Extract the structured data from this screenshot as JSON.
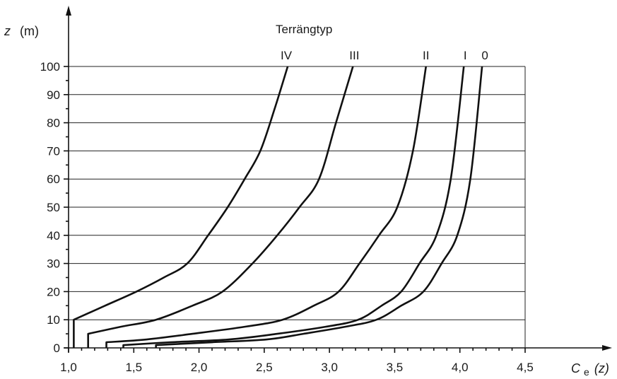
{
  "chart_data": {
    "type": "line",
    "legend_title": "Terrängtyp",
    "xlabel": {
      "symbol": "C",
      "subscript": "e",
      "arg": "(z)"
    },
    "ylabel": {
      "symbol": "z",
      "unit": "(m)"
    },
    "xlim": [
      1.0,
      4.5
    ],
    "ylim": [
      0,
      100
    ],
    "x_ticks": [
      "1,0",
      "1,5",
      "2,0",
      "2,5",
      "3,0",
      "3,5",
      "4,0",
      "4,5"
    ],
    "x_tick_values": [
      1.0,
      1.5,
      2.0,
      2.5,
      3.0,
      3.5,
      4.0,
      4.5
    ],
    "y_ticks": [
      "0",
      "10",
      "20",
      "30",
      "40",
      "50",
      "60",
      "70",
      "80",
      "90",
      "100"
    ],
    "y_tick_values": [
      0,
      10,
      20,
      30,
      40,
      50,
      60,
      70,
      80,
      90,
      100
    ],
    "grid": "horizontal",
    "series": [
      {
        "name": "IV",
        "z_min": 10,
        "x": [
          1.04,
          1.28,
          1.52,
          1.73,
          1.91,
          2.07,
          2.22,
          2.35,
          2.47,
          2.58,
          2.68
        ],
        "z": [
          10,
          15,
          20,
          25,
          30,
          40,
          50,
          60,
          70,
          85,
          100
        ]
      },
      {
        "name": "III",
        "z_min": 5,
        "x": [
          1.15,
          1.4,
          1.67,
          1.95,
          2.18,
          2.41,
          2.6,
          2.77,
          2.92,
          3.05,
          3.18
        ],
        "z": [
          5,
          7.5,
          10,
          15,
          20,
          30,
          40,
          50,
          60,
          80,
          100
        ]
      },
      {
        "name": "II",
        "z_min": 2,
        "x": [
          1.29,
          1.6,
          1.95,
          2.35,
          2.64,
          2.88,
          3.07,
          3.23,
          3.38,
          3.52,
          3.64,
          3.74
        ],
        "z": [
          2,
          3,
          5,
          7.5,
          10,
          15,
          20,
          30,
          40,
          50,
          70,
          100
        ]
      },
      {
        "name": "I",
        "z_min": 1,
        "x": [
          1.42,
          1.78,
          2.23,
          2.6,
          2.97,
          3.22,
          3.4,
          3.55,
          3.69,
          3.82,
          3.93,
          4.03
        ],
        "z": [
          1,
          2,
          3,
          5,
          7.5,
          10,
          15,
          20,
          30,
          40,
          60,
          100
        ]
      },
      {
        "name": "0",
        "z_min": 1,
        "x": [
          1.67,
          2.1,
          2.52,
          2.8,
          3.12,
          3.36,
          3.55,
          3.72,
          3.86,
          3.98,
          4.08,
          4.17
        ],
        "z": [
          1,
          2,
          3,
          5,
          7.5,
          10,
          15,
          20,
          30,
          40,
          60,
          100
        ]
      }
    ]
  }
}
